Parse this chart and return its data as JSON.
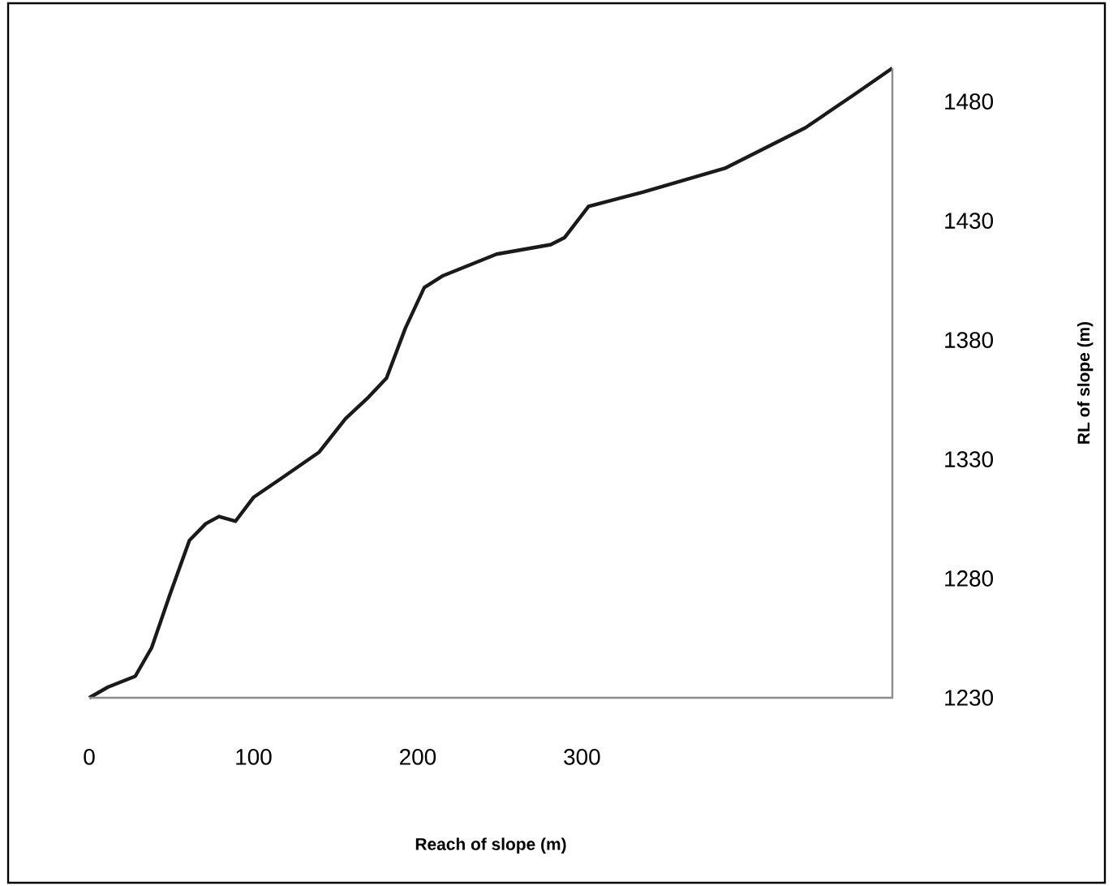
{
  "chart_data": {
    "type": "line",
    "xlabel": "Reach of slope (m)",
    "ylabel": "RL of slope (m)",
    "xlim": [
      0,
      489
    ],
    "xticks": [
      0,
      100,
      200,
      300
    ],
    "ylim": [
      1230,
      1494
    ],
    "yticks": [
      1230,
      1280,
      1330,
      1380,
      1430,
      1480
    ],
    "marker": "none",
    "line_style": "solid",
    "series": [
      {
        "color": "#1a1a1a",
        "x": [
          0,
          11.5,
          28,
          38,
          49,
          61,
          71,
          79,
          89,
          100,
          117,
          140,
          156,
          170,
          181,
          192.5,
          204,
          215.5,
          248,
          281,
          289.5,
          304,
          337,
          387,
          436,
          466,
          489
        ],
        "values": [
          1230,
          1234.5,
          1239,
          1251,
          1273,
          1296,
          1303,
          1306,
          1304,
          1314,
          1322,
          1333,
          1347,
          1356,
          1364,
          1385,
          1402,
          1407,
          1416,
          1420,
          1423,
          1436,
          1442,
          1452,
          1469,
          1483,
          1494
        ]
      }
    ]
  }
}
